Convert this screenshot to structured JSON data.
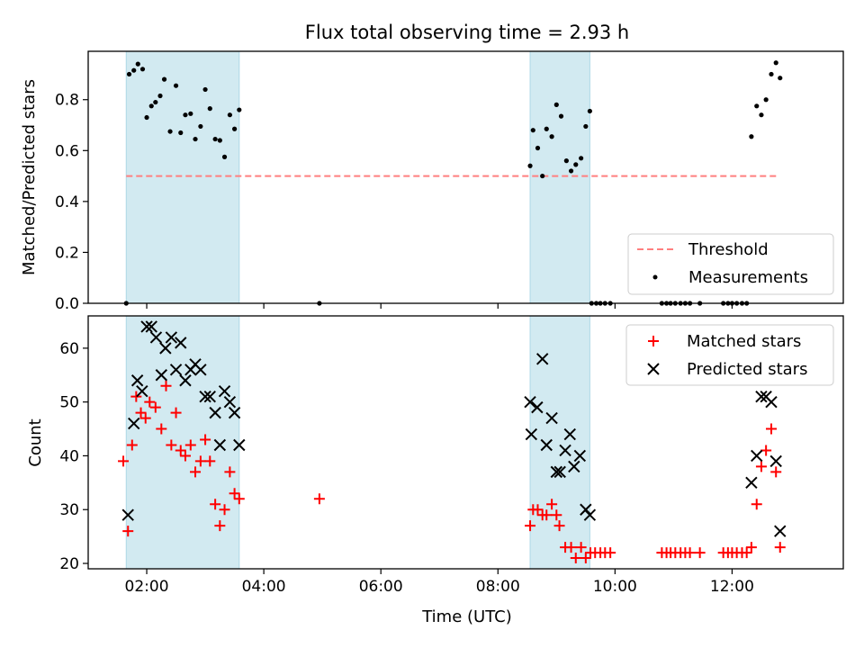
{
  "chart_data": [
    {
      "type": "scatter",
      "title": "Flux total observing time = 2.93 h",
      "xlabel": "",
      "ylabel": "Matched/Predicted stars",
      "x_unit": "hours UTC",
      "xlim": [
        1.0,
        13.9
      ],
      "ylim": [
        0,
        0.99
      ],
      "yticks": [
        "0.0",
        "0.2",
        "0.4",
        "0.6",
        "0.8"
      ],
      "xticks": [
        "02:00",
        "04:00",
        "06:00",
        "08:00",
        "10:00",
        "12:00"
      ],
      "grid": false,
      "legend_position": "lower-right",
      "shaded_intervals": [
        [
          1.65,
          3.58
        ],
        [
          8.55,
          9.57
        ]
      ],
      "threshold": {
        "name": "Threshold",
        "value": 0.5,
        "x_range": [
          1.65,
          12.78
        ],
        "color": "#ff7f7f",
        "style": "dashed"
      },
      "series": [
        {
          "name": "Measurements",
          "marker": "dot",
          "color": "#000000",
          "points": [
            [
              1.65,
              0.0
            ],
            [
              1.7,
              0.9
            ],
            [
              1.78,
              0.915
            ],
            [
              1.85,
              0.94
            ],
            [
              1.93,
              0.92
            ],
            [
              2.0,
              0.73
            ],
            [
              2.08,
              0.775
            ],
            [
              2.15,
              0.79
            ],
            [
              2.23,
              0.815
            ],
            [
              2.3,
              0.88
            ],
            [
              2.4,
              0.675
            ],
            [
              2.5,
              0.855
            ],
            [
              2.58,
              0.67
            ],
            [
              2.66,
              0.74
            ],
            [
              2.75,
              0.745
            ],
            [
              2.83,
              0.645
            ],
            [
              2.92,
              0.695
            ],
            [
              3.0,
              0.84
            ],
            [
              3.08,
              0.765
            ],
            [
              3.17,
              0.645
            ],
            [
              3.25,
              0.64
            ],
            [
              3.33,
              0.575
            ],
            [
              3.42,
              0.74
            ],
            [
              3.5,
              0.685
            ],
            [
              3.58,
              0.76
            ],
            [
              4.95,
              0.0
            ],
            [
              8.55,
              0.54
            ],
            [
              8.6,
              0.68
            ],
            [
              8.68,
              0.61
            ],
            [
              8.76,
              0.5
            ],
            [
              8.83,
              0.685
            ],
            [
              8.92,
              0.655
            ],
            [
              9.0,
              0.78
            ],
            [
              9.08,
              0.735
            ],
            [
              9.17,
              0.56
            ],
            [
              9.25,
              0.52
            ],
            [
              9.33,
              0.545
            ],
            [
              9.42,
              0.57
            ],
            [
              9.5,
              0.695
            ],
            [
              9.57,
              0.755
            ],
            [
              9.6,
              0.0
            ],
            [
              9.68,
              0.0
            ],
            [
              9.75,
              0.0
            ],
            [
              9.83,
              0.0
            ],
            [
              9.92,
              0.0
            ],
            [
              10.8,
              0.0
            ],
            [
              10.88,
              0.0
            ],
            [
              10.95,
              0.0
            ],
            [
              11.03,
              0.0
            ],
            [
              11.12,
              0.0
            ],
            [
              11.2,
              0.0
            ],
            [
              11.28,
              0.0
            ],
            [
              11.45,
              0.0
            ],
            [
              11.85,
              0.0
            ],
            [
              11.93,
              0.0
            ],
            [
              12.0,
              0.0
            ],
            [
              12.08,
              0.0
            ],
            [
              12.17,
              0.0
            ],
            [
              12.25,
              0.0
            ],
            [
              12.33,
              0.655
            ],
            [
              12.42,
              0.775
            ],
            [
              12.5,
              0.74
            ],
            [
              12.58,
              0.8
            ],
            [
              12.67,
              0.9
            ],
            [
              12.75,
              0.945
            ],
            [
              12.82,
              0.885
            ]
          ]
        }
      ]
    },
    {
      "type": "scatter",
      "title": "",
      "xlabel": "Time (UTC)",
      "ylabel": "Count",
      "x_unit": "hours UTC",
      "xlim": [
        1.0,
        13.9
      ],
      "ylim": [
        19,
        66
      ],
      "yticks": [
        "20",
        "30",
        "40",
        "50",
        "60"
      ],
      "xticks": [
        "02:00",
        "04:00",
        "06:00",
        "08:00",
        "10:00",
        "12:00"
      ],
      "grid": false,
      "legend_position": "upper-right",
      "shaded_intervals": [
        [
          1.65,
          3.58
        ],
        [
          8.55,
          9.57
        ]
      ],
      "series": [
        {
          "name": "Matched stars",
          "marker": "plus",
          "color": "#ff0000",
          "points": [
            [
              1.6,
              39
            ],
            [
              1.68,
              26
            ],
            [
              1.75,
              42
            ],
            [
              1.82,
              51
            ],
            [
              1.9,
              48
            ],
            [
              1.98,
              47
            ],
            [
              2.05,
              50
            ],
            [
              2.15,
              49
            ],
            [
              2.25,
              45
            ],
            [
              2.33,
              53
            ],
            [
              2.42,
              42
            ],
            [
              2.5,
              48
            ],
            [
              2.58,
              41
            ],
            [
              2.66,
              40
            ],
            [
              2.75,
              42
            ],
            [
              2.83,
              37
            ],
            [
              2.92,
              39
            ],
            [
              3.0,
              43
            ],
            [
              3.08,
              39
            ],
            [
              3.17,
              31
            ],
            [
              3.25,
              27
            ],
            [
              3.33,
              30
            ],
            [
              3.42,
              37
            ],
            [
              3.5,
              33
            ],
            [
              3.58,
              32
            ],
            [
              4.95,
              32
            ],
            [
              8.55,
              27
            ],
            [
              8.6,
              30
            ],
            [
              8.68,
              30
            ],
            [
              8.76,
              29
            ],
            [
              8.83,
              29
            ],
            [
              8.92,
              31
            ],
            [
              9.0,
              29
            ],
            [
              9.05,
              27
            ],
            [
              9.15,
              23
            ],
            [
              9.25,
              23
            ],
            [
              9.33,
              21
            ],
            [
              9.42,
              23
            ],
            [
              9.5,
              21
            ],
            [
              9.58,
              22
            ],
            [
              9.66,
              22
            ],
            [
              9.75,
              22
            ],
            [
              9.83,
              22
            ],
            [
              9.92,
              22
            ],
            [
              10.8,
              22
            ],
            [
              10.88,
              22
            ],
            [
              10.95,
              22
            ],
            [
              11.03,
              22
            ],
            [
              11.12,
              22
            ],
            [
              11.2,
              22
            ],
            [
              11.28,
              22
            ],
            [
              11.45,
              22
            ],
            [
              11.85,
              22
            ],
            [
              11.93,
              22
            ],
            [
              12.0,
              22
            ],
            [
              12.08,
              22
            ],
            [
              12.17,
              22
            ],
            [
              12.25,
              22
            ],
            [
              12.33,
              23
            ],
            [
              12.42,
              31
            ],
            [
              12.5,
              38
            ],
            [
              12.58,
              41
            ],
            [
              12.67,
              45
            ],
            [
              12.75,
              37
            ],
            [
              12.82,
              23
            ]
          ]
        },
        {
          "name": "Predicted stars",
          "marker": "x",
          "color": "#000000",
          "points": [
            [
              1.68,
              29
            ],
            [
              1.78,
              46
            ],
            [
              1.84,
              54
            ],
            [
              1.92,
              52
            ],
            [
              2.0,
              64
            ],
            [
              2.08,
              64
            ],
            [
              2.16,
              62
            ],
            [
              2.25,
              55
            ],
            [
              2.32,
              60
            ],
            [
              2.42,
              62
            ],
            [
              2.5,
              56
            ],
            [
              2.58,
              61
            ],
            [
              2.66,
              54
            ],
            [
              2.75,
              56
            ],
            [
              2.83,
              57
            ],
            [
              2.92,
              56
            ],
            [
              3.0,
              51
            ],
            [
              3.08,
              51
            ],
            [
              3.17,
              48
            ],
            [
              3.25,
              42
            ],
            [
              3.33,
              52
            ],
            [
              3.42,
              50
            ],
            [
              3.5,
              48
            ],
            [
              3.58,
              42
            ],
            [
              8.55,
              50
            ],
            [
              8.57,
              44
            ],
            [
              8.67,
              49
            ],
            [
              8.76,
              58
            ],
            [
              8.83,
              42
            ],
            [
              8.92,
              47
            ],
            [
              9.0,
              37
            ],
            [
              9.06,
              37
            ],
            [
              9.15,
              41
            ],
            [
              9.23,
              44
            ],
            [
              9.3,
              38
            ],
            [
              9.4,
              40
            ],
            [
              9.5,
              30
            ],
            [
              9.57,
              29
            ],
            [
              12.33,
              35
            ],
            [
              12.42,
              40
            ],
            [
              12.5,
              51
            ],
            [
              12.58,
              51
            ],
            [
              12.67,
              50
            ],
            [
              12.75,
              39
            ],
            [
              12.82,
              26
            ]
          ]
        }
      ]
    }
  ],
  "colors": {
    "shade": "#add8e6",
    "threshold": "#ff7f7f",
    "measurement": "#000000",
    "matched": "#ff0000",
    "predicted": "#000000"
  }
}
